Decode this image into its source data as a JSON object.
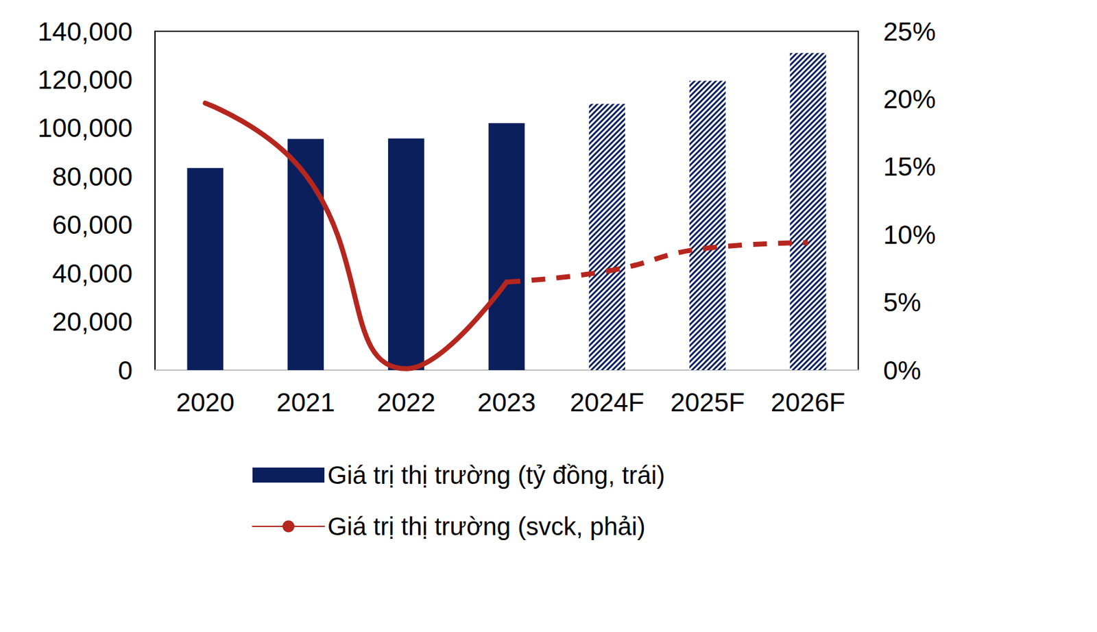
{
  "chart_data": {
    "type": "bar",
    "categories": [
      "2020",
      "2021",
      "2022",
      "2023",
      "2024F",
      "2025F",
      "2026F"
    ],
    "series": [
      {
        "name": "Giá trị thị trường (tỷ đồng, trái)",
        "type": "bar",
        "color": "#0b1f5c",
        "values": [
          83500,
          95500,
          95700,
          102000,
          110000,
          119500,
          131000
        ]
      },
      {
        "name": "Giá trị thị trường (svck, phải)",
        "type": "line",
        "axis": "y2",
        "color": "#b5261e",
        "line_style": "solid",
        "values": [
          19.7,
          14.4,
          0.1,
          6.5,
          7.3,
          9.0,
          9.4
        ]
      }
    ],
    "ylim": [
      0,
      140000
    ],
    "yticks": [
      0,
      {
        "value": 20000,
        "label": "20,000"
      },
      {
        "value": 40000,
        "label": "40,000"
      },
      {
        "value": 60000,
        "label": "60,000"
      },
      {
        "value": 80000,
        "label": "80,000"
      },
      {
        "value": 100000,
        "label": "100,000"
      },
      {
        "value": 120000,
        "label": "120,000"
      },
      {
        "value": 140000,
        "label": "140,000"
      }
    ],
    "y2lim": [
      0,
      25
    ],
    "y2ticks": [
      {
        "value": 0,
        "label": "0%"
      },
      {
        "value": 5,
        "label": "5%"
      },
      {
        "value": 10,
        "label": "10%"
      },
      {
        "value": 15,
        "label": "15%"
      },
      {
        "value": 20,
        "label": "20%"
      },
      {
        "value": 25,
        "label": "25%"
      }
    ],
    "grid": false,
    "legend": "bottom"
  }
}
